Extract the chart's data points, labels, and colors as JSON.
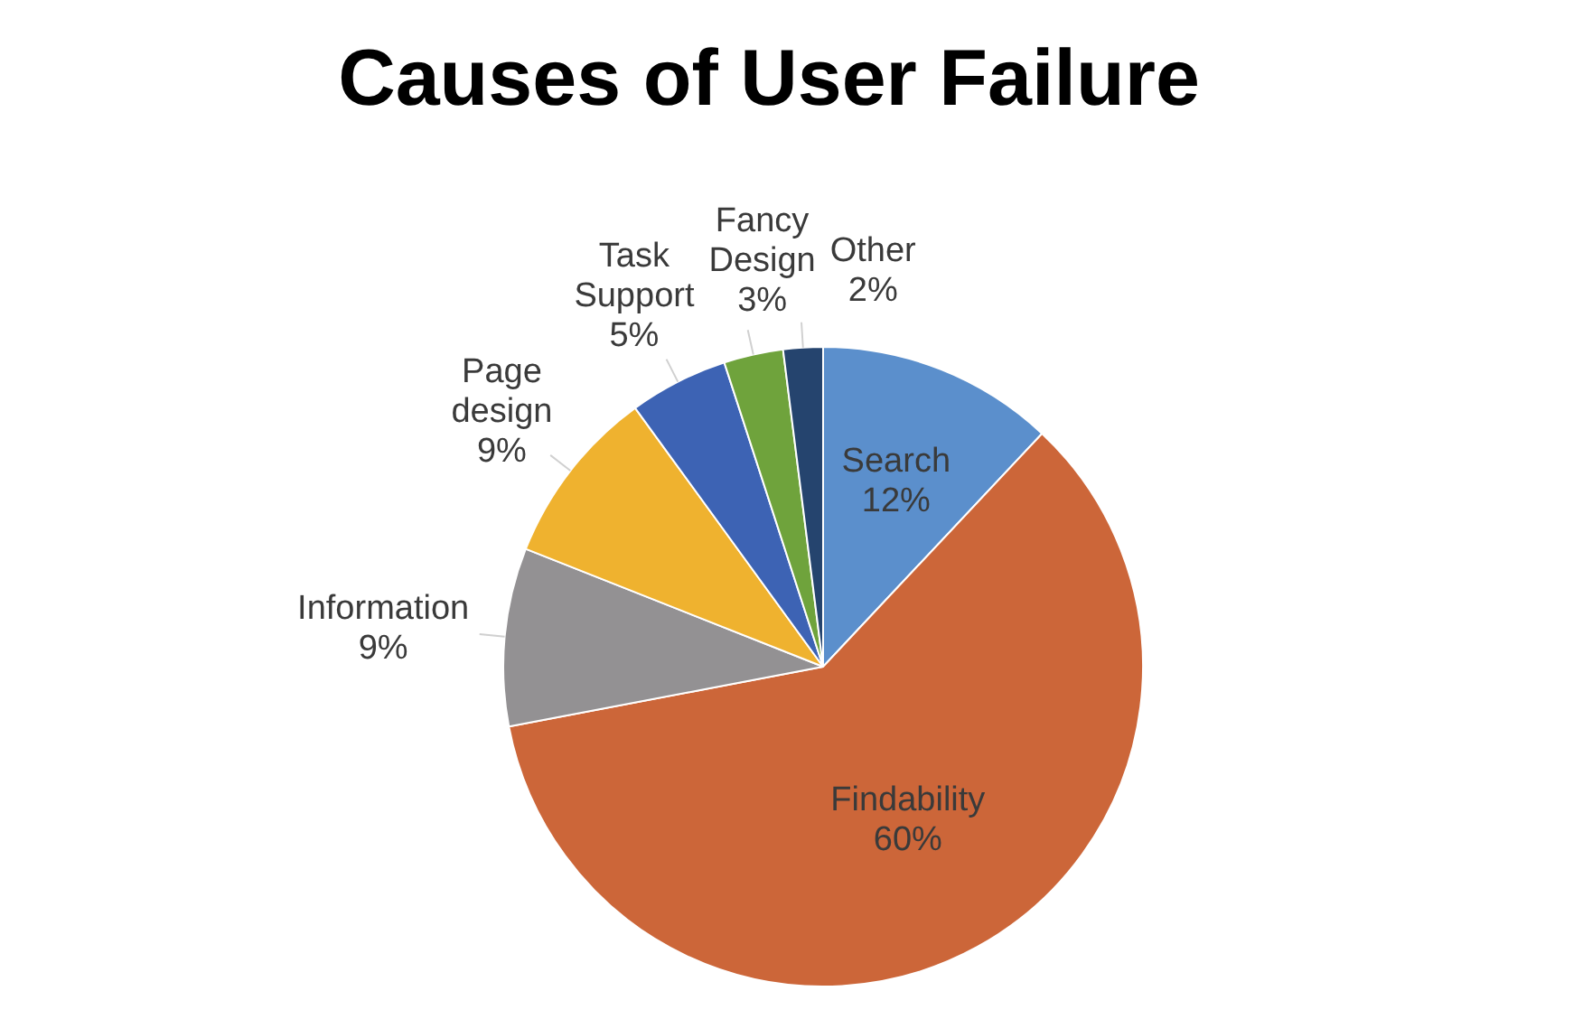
{
  "chart_data": {
    "type": "pie",
    "title": "Causes of User Failure",
    "categories": [
      "Search",
      "Findability",
      "Information",
      "Page design",
      "Task Support",
      "Fancy Design",
      "Other"
    ],
    "values": [
      12,
      60,
      9,
      9,
      5,
      3,
      2
    ],
    "value_labels": [
      "12%",
      "60%",
      "9%",
      "9%",
      "5%",
      "3%",
      "2%"
    ],
    "colors": [
      "#5b8fcc",
      "#cc6639",
      "#939193",
      "#efb22f",
      "#3d63b4",
      "#6fa33c",
      "#25446e"
    ],
    "legend": false
  }
}
